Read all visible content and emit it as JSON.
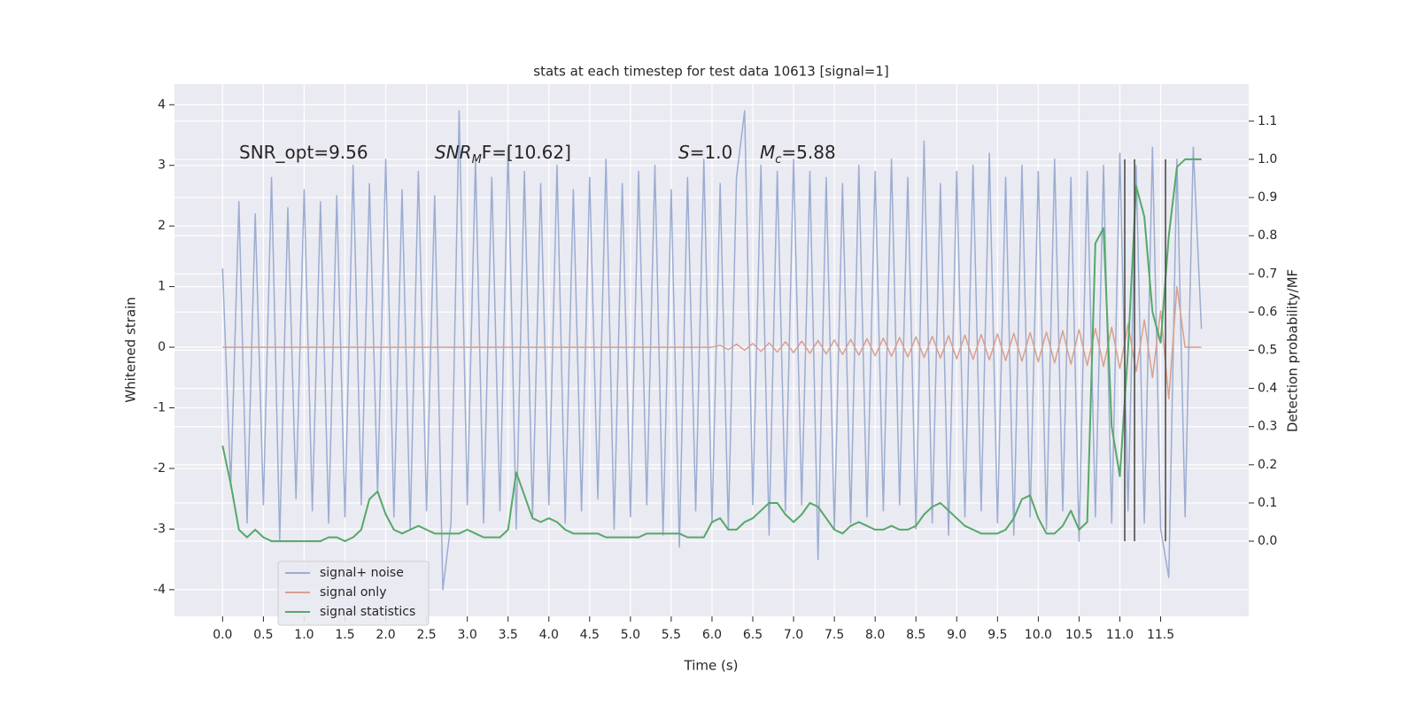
{
  "chart_data": {
    "type": "line",
    "title": "stats at each timestep for test data 10613 [signal=1]",
    "xlabel": "Time (s)",
    "ylabel": "Whitened strain",
    "y2label": "Detection probability/MF",
    "xlim": [
      -0.59,
      12.58
    ],
    "ylim": [
      -4.44,
      4.34
    ],
    "y2lim": [
      -0.197,
      1.197
    ],
    "xticks": [
      {
        "value": 0,
        "label": "0.0"
      },
      0.5,
      {
        "value": 1,
        "label": "1.0"
      },
      1.5,
      {
        "value": 2,
        "label": "2.0"
      },
      2.5,
      {
        "value": 3,
        "label": "3.0"
      },
      3.5,
      {
        "value": 4,
        "label": "4.0"
      },
      4.5,
      {
        "value": 5,
        "label": "5.0"
      },
      5.5,
      {
        "value": 6,
        "label": "6.0"
      },
      6.5,
      {
        "value": 7,
        "label": "7.0"
      },
      7.5,
      {
        "value": 8,
        "label": "8.0"
      },
      8.5,
      {
        "value": 9,
        "label": "9.0"
      },
      9.5,
      {
        "value": 10,
        "label": "10.0"
      },
      10.5,
      {
        "value": 11,
        "label": "11.0"
      },
      11.5
    ],
    "yticks": [
      -4,
      -3,
      -2,
      -1,
      0,
      1,
      2,
      3,
      4
    ],
    "y2ticks": [
      {
        "value": 0,
        "label": "0.0"
      },
      0.1,
      0.2,
      0.3,
      0.4,
      0.5,
      0.6,
      0.7,
      0.8,
      0.9,
      {
        "value": 1,
        "label": "1.0"
      },
      1.1
    ],
    "grid": true,
    "legend": "lower left",
    "x": [
      0,
      0.1,
      0.2,
      0.3,
      0.4,
      0.5,
      0.6,
      0.7,
      0.8,
      0.9,
      1,
      1.1,
      1.2,
      1.3,
      1.4,
      1.5,
      1.6,
      1.7,
      1.8,
      1.9,
      2,
      2.1,
      2.2,
      2.3,
      2.4,
      2.5,
      2.6,
      2.7,
      2.8,
      2.9,
      3,
      3.1,
      3.2,
      3.3,
      3.4,
      3.5,
      3.6,
      3.7,
      3.8,
      3.9,
      4,
      4.1,
      4.2,
      4.3,
      4.4,
      4.5,
      4.6,
      4.7,
      4.8,
      4.9,
      5,
      5.1,
      5.2,
      5.3,
      5.4,
      5.5,
      5.6,
      5.7,
      5.8,
      5.9,
      6,
      6.1,
      6.2,
      6.3,
      6.4,
      6.5,
      6.6,
      6.7,
      6.8,
      6.9,
      7,
      7.1,
      7.2,
      7.3,
      7.4,
      7.5,
      7.6,
      7.7,
      7.8,
      7.9,
      8,
      8.1,
      8.2,
      8.3,
      8.4,
      8.5,
      8.6,
      8.7,
      8.8,
      8.9,
      9,
      9.1,
      9.2,
      9.3,
      9.4,
      9.5,
      9.6,
      9.7,
      9.8,
      9.9,
      10,
      10.1,
      10.2,
      10.3,
      10.4,
      10.5,
      10.6,
      10.7,
      10.8,
      10.9,
      11,
      11.1,
      11.2,
      11.3,
      11.4,
      11.5,
      11.6,
      11.7,
      11.8,
      11.9,
      12
    ],
    "series": [
      {
        "name": "signal+ noise",
        "color": "#9badd1",
        "values": [
          1.3,
          -2.3,
          2.4,
          -2.9,
          2.2,
          -2.6,
          2.8,
          -3.2,
          2.3,
          -2.5,
          2.6,
          -2.7,
          2.4,
          -2.9,
          2.5,
          -2.8,
          3.0,
          -2.6,
          2.7,
          -2.4,
          3.1,
          -2.8,
          2.6,
          -3.0,
          2.9,
          -2.7,
          2.5,
          -4.0,
          -2.9,
          3.9,
          -2.6,
          3.1,
          -2.9,
          2.8,
          -2.7,
          3.3,
          -3.0,
          2.9,
          -2.8,
          2.7,
          -2.6,
          3.0,
          -2.9,
          2.6,
          -2.7,
          2.8,
          -2.5,
          3.1,
          -3.0,
          2.7,
          -2.8,
          2.9,
          -2.6,
          3.0,
          -3.1,
          2.6,
          -3.3,
          2.8,
          -2.7,
          3.1,
          -2.9,
          2.7,
          -3.0,
          2.8,
          3.9,
          -2.6,
          3.0,
          -3.1,
          2.9,
          -2.7,
          3.1,
          -2.6,
          2.9,
          -3.5,
          2.8,
          -3.0,
          2.7,
          -2.9,
          3.0,
          -2.8,
          2.9,
          -2.7,
          3.1,
          -2.6,
          2.8,
          -3.0,
          3.4,
          -2.9,
          2.7,
          -3.1,
          2.9,
          -2.8,
          3.0,
          -2.7,
          3.2,
          -2.9,
          2.8,
          -3.1,
          3.0,
          -2.8,
          2.9,
          -3.0,
          3.1,
          -2.7,
          2.8,
          -3.2,
          2.9,
          -2.8,
          3.0,
          -2.9,
          3.2,
          -2.7,
          3.0,
          -2.9,
          3.3,
          -3.0,
          -3.8,
          3.1,
          -2.8,
          3.3,
          0.3
        ]
      },
      {
        "name": "signal only",
        "color": "#d9a08c",
        "values": [
          0,
          0,
          0,
          0,
          0,
          0,
          0,
          0,
          0,
          0,
          0,
          0,
          0,
          0,
          0,
          0,
          0,
          0,
          0,
          0,
          0,
          0,
          0,
          0,
          0,
          0,
          0,
          0,
          0,
          0,
          0,
          0,
          0,
          0,
          0,
          0,
          0,
          0,
          0,
          0,
          0,
          0,
          0,
          0,
          0,
          0,
          0,
          0,
          0,
          0,
          0,
          0,
          0,
          0,
          0,
          0,
          0,
          0,
          0,
          0,
          0,
          0.03,
          -0.04,
          0.05,
          -0.05,
          0.06,
          -0.07,
          0.07,
          -0.08,
          0.09,
          -0.09,
          0.1,
          -0.1,
          0.11,
          -0.11,
          0.12,
          -0.12,
          0.13,
          -0.13,
          0.14,
          -0.14,
          0.15,
          -0.15,
          0.16,
          -0.16,
          0.17,
          -0.17,
          0.18,
          -0.18,
          0.19,
          -0.19,
          0.2,
          -0.2,
          0.21,
          -0.21,
          0.22,
          -0.22,
          0.23,
          -0.23,
          0.24,
          -0.24,
          0.25,
          -0.26,
          0.27,
          -0.28,
          0.29,
          -0.3,
          0.31,
          -0.32,
          0.33,
          -0.35,
          0.38,
          -0.4,
          0.45,
          -0.5,
          0.6,
          -0.85,
          1.0,
          0,
          0,
          0
        ]
      },
      {
        "name": "signal statistics",
        "color": "#55a868",
        "axis": "y2",
        "values": [
          0.25,
          0.15,
          0.03,
          0.01,
          0.03,
          0.01,
          0,
          0,
          0,
          0,
          0,
          0,
          0,
          0.01,
          0.01,
          0,
          0.01,
          0.03,
          0.11,
          0.13,
          0.07,
          0.03,
          0.02,
          0.03,
          0.04,
          0.03,
          0.02,
          0.02,
          0.02,
          0.02,
          0.03,
          0.02,
          0.01,
          0.01,
          0.01,
          0.03,
          0.18,
          0.12,
          0.06,
          0.05,
          0.06,
          0.05,
          0.03,
          0.02,
          0.02,
          0.02,
          0.02,
          0.01,
          0.01,
          0.01,
          0.01,
          0.01,
          0.02,
          0.02,
          0.02,
          0.02,
          0.02,
          0.01,
          0.01,
          0.01,
          0.05,
          0.06,
          0.03,
          0.03,
          0.05,
          0.06,
          0.08,
          0.1,
          0.1,
          0.07,
          0.05,
          0.07,
          0.1,
          0.09,
          0.06,
          0.03,
          0.02,
          0.04,
          0.05,
          0.04,
          0.03,
          0.03,
          0.04,
          0.03,
          0.03,
          0.04,
          0.07,
          0.09,
          0.1,
          0.08,
          0.06,
          0.04,
          0.03,
          0.02,
          0.02,
          0.02,
          0.03,
          0.06,
          0.11,
          0.12,
          0.06,
          0.02,
          0.02,
          0.04,
          0.08,
          0.03,
          0.05,
          0.78,
          0.82,
          0.3,
          0.17,
          0.5,
          0.93,
          0.85,
          0.6,
          0.52,
          0.8,
          0.98,
          1.0,
          1.0,
          1.0
        ]
      }
    ],
    "vlines": {
      "x": [
        11.06,
        11.18,
        11.56
      ],
      "ymin": 0,
      "ymax": 1,
      "color": "#444444"
    },
    "annotations": [
      {
        "parts": [
          {
            "text": "SNR_opt=9.56"
          }
        ]
      },
      {
        "parts": [
          {
            "text": "SNR",
            "style": "italic"
          },
          {
            "text": "M",
            "style": "italic-sub"
          },
          {
            "text": "F=[10.62]"
          }
        ]
      },
      {
        "parts": [
          {
            "text": "S",
            "style": "italic"
          },
          {
            "text": "=1.0"
          }
        ]
      },
      {
        "parts": [
          {
            "text": "M",
            "style": "italic"
          },
          {
            "text": "c",
            "style": "italic-sub"
          },
          {
            "text": "=5.88"
          }
        ]
      }
    ]
  }
}
